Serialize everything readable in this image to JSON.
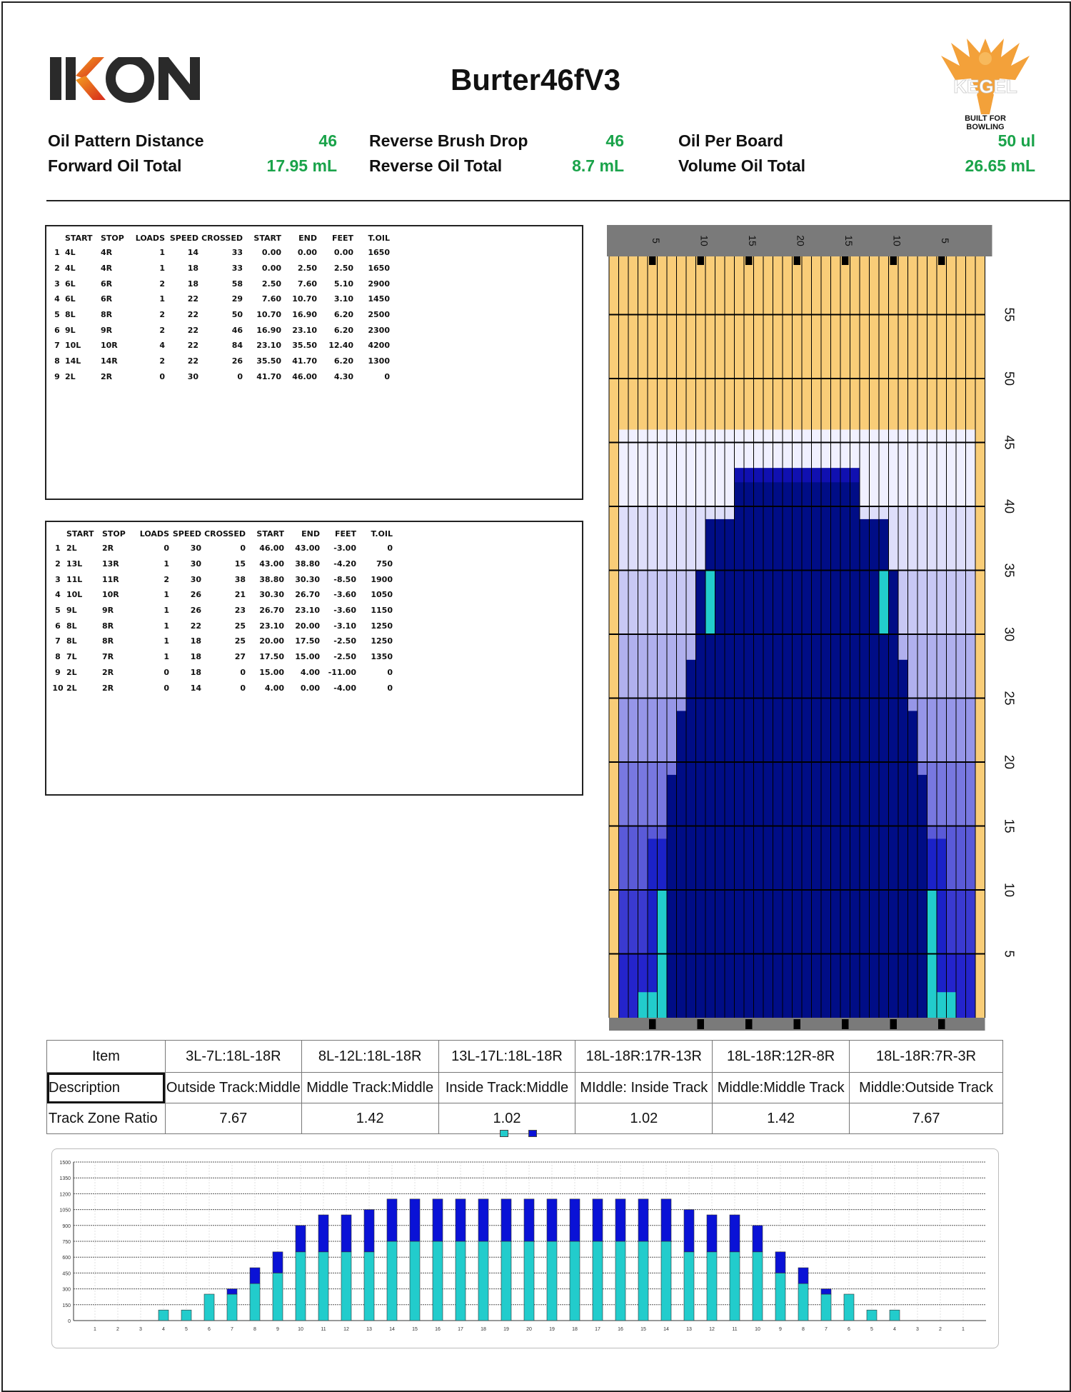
{
  "header": {
    "brand": "IKON",
    "title": "Burter46fV3",
    "kegel_brand": "KEGEL",
    "kegel_tagline": "BUILT FOR BOWLING"
  },
  "stats": [
    {
      "label": "Oil Pattern Distance",
      "value": "46"
    },
    {
      "label": "Forward Oil Total",
      "value": "17.95 mL"
    },
    {
      "label": "Reverse Brush Drop",
      "value": "46"
    },
    {
      "label": "Reverse Oil Total",
      "value": "8.7 mL"
    },
    {
      "label": "Oil Per Board",
      "value": "50 ul"
    },
    {
      "label": "Volume Oil Total",
      "value": "26.65 mL"
    }
  ],
  "load_columns": [
    "START",
    "STOP",
    "LOADS",
    "SPEED",
    "CROSSED",
    "START",
    "END",
    "FEET",
    "T.OIL"
  ],
  "forward_loads": [
    [
      "1",
      "4L",
      "4R",
      "1",
      "14",
      "33",
      "0.00",
      "0.00",
      "0.00",
      "1650"
    ],
    [
      "2",
      "4L",
      "4R",
      "1",
      "18",
      "33",
      "0.00",
      "2.50",
      "2.50",
      "1650"
    ],
    [
      "3",
      "6L",
      "6R",
      "2",
      "18",
      "58",
      "2.50",
      "7.60",
      "5.10",
      "2900"
    ],
    [
      "4",
      "6L",
      "6R",
      "1",
      "22",
      "29",
      "7.60",
      "10.70",
      "3.10",
      "1450"
    ],
    [
      "5",
      "8L",
      "8R",
      "2",
      "22",
      "50",
      "10.70",
      "16.90",
      "6.20",
      "2500"
    ],
    [
      "6",
      "9L",
      "9R",
      "2",
      "22",
      "46",
      "16.90",
      "23.10",
      "6.20",
      "2300"
    ],
    [
      "7",
      "10L",
      "10R",
      "4",
      "22",
      "84",
      "23.10",
      "35.50",
      "12.40",
      "4200"
    ],
    [
      "8",
      "14L",
      "14R",
      "2",
      "22",
      "26",
      "35.50",
      "41.70",
      "6.20",
      "1300"
    ],
    [
      "9",
      "2L",
      "2R",
      "0",
      "30",
      "0",
      "41.70",
      "46.00",
      "4.30",
      "0"
    ]
  ],
  "reverse_loads": [
    [
      "1",
      "2L",
      "2R",
      "0",
      "30",
      "0",
      "46.00",
      "43.00",
      "-3.00",
      "0"
    ],
    [
      "2",
      "13L",
      "13R",
      "1",
      "30",
      "15",
      "43.00",
      "38.80",
      "-4.20",
      "750"
    ],
    [
      "3",
      "11L",
      "11R",
      "2",
      "30",
      "38",
      "38.80",
      "30.30",
      "-8.50",
      "1900"
    ],
    [
      "4",
      "10L",
      "10R",
      "1",
      "26",
      "21",
      "30.30",
      "26.70",
      "-3.60",
      "1050"
    ],
    [
      "5",
      "9L",
      "9R",
      "1",
      "26",
      "23",
      "26.70",
      "23.10",
      "-3.60",
      "1150"
    ],
    [
      "6",
      "8L",
      "8R",
      "1",
      "22",
      "25",
      "23.10",
      "20.00",
      "-3.10",
      "1250"
    ],
    [
      "7",
      "8L",
      "8R",
      "1",
      "18",
      "25",
      "20.00",
      "17.50",
      "-2.50",
      "1250"
    ],
    [
      "8",
      "7L",
      "7R",
      "1",
      "18",
      "27",
      "17.50",
      "15.00",
      "-2.50",
      "1350"
    ],
    [
      "9",
      "2L",
      "2R",
      "0",
      "18",
      "0",
      "15.00",
      "4.00",
      "-11.00",
      "0"
    ],
    [
      "10",
      "2L",
      "2R",
      "0",
      "14",
      "0",
      "4.00",
      "0.00",
      "-4.00",
      "0"
    ]
  ],
  "lane_graph": {
    "top_labels": [
      "5",
      "10",
      "15",
      "20",
      "15",
      "10",
      "5"
    ],
    "distance_labels": [
      "55",
      "50",
      "45",
      "40",
      "35",
      "30",
      "25",
      "20",
      "15",
      "10",
      "5"
    ],
    "pattern_length_ft": 46,
    "colors": {
      "dry": "#f9cd78",
      "oil_dark": "#000d86",
      "oil_mid": "#1b22c8",
      "accent": "#22cccc"
    }
  },
  "zone_table": {
    "row_item": [
      "Item",
      "3L-7L:18L-18R",
      "8L-12L:18L-18R",
      "13L-17L:18L-18R",
      "18L-18R:17R-13R",
      "18L-18R:12R-8R",
      "18L-18R:7R-3R"
    ],
    "row_desc": [
      "Description",
      "Outside Track:Middle",
      "Middle Track:Middle",
      "Inside Track:Middle",
      "MIddle: Inside Track",
      "Middle:Middle Track",
      "Middle:Outside Track"
    ],
    "row_ratio": [
      "Track Zone Ratio",
      "7.67",
      "1.42",
      "1.02",
      "1.02",
      "1.42",
      "7.67"
    ]
  },
  "chart_data": {
    "type": "bar",
    "stacked": true,
    "title": "",
    "xlabel": "",
    "ylabel": "",
    "ylim": [
      0,
      1500
    ],
    "yticks": [
      0,
      150,
      300,
      450,
      600,
      750,
      900,
      1050,
      1200,
      1350,
      1500
    ],
    "grid": true,
    "categories": [
      "1",
      "2",
      "3",
      "4",
      "5",
      "6",
      "7",
      "8",
      "9",
      "10",
      "11",
      "12",
      "13",
      "14",
      "15",
      "16",
      "17",
      "18",
      "19",
      "20",
      "19",
      "18",
      "17",
      "16",
      "15",
      "14",
      "13",
      "12",
      "11",
      "10",
      "9",
      "8",
      "7",
      "6",
      "5",
      "4",
      "3",
      "2",
      "1"
    ],
    "series": [
      {
        "color": "#22cccc",
        "values": [
          0,
          0,
          0,
          100,
          100,
          250,
          250,
          350,
          450,
          650,
          650,
          650,
          650,
          750,
          750,
          750,
          750,
          750,
          750,
          750,
          750,
          750,
          750,
          750,
          750,
          750,
          650,
          650,
          650,
          650,
          450,
          350,
          250,
          250,
          100,
          100,
          0,
          0,
          0
        ]
      },
      {
        "color": "#0a12d6",
        "values": [
          0,
          0,
          0,
          0,
          0,
          0,
          50,
          150,
          200,
          250,
          350,
          350,
          400,
          400,
          400,
          400,
          400,
          400,
          400,
          400,
          400,
          400,
          400,
          400,
          400,
          400,
          400,
          350,
          350,
          250,
          200,
          150,
          50,
          0,
          0,
          0,
          0,
          0,
          0
        ]
      }
    ]
  }
}
